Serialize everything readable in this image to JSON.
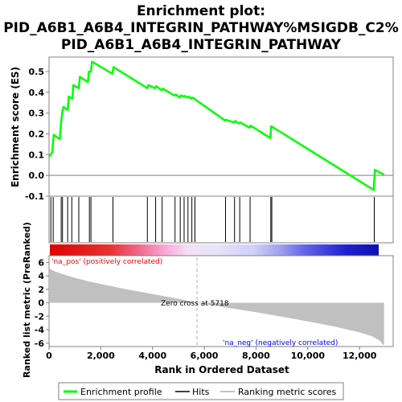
{
  "title_line1": "Enrichment plot:",
  "title_line2": "PID_A6B1_A6B4_INTEGRIN_PATHWAY%MSIGDB_C2%",
  "title_line3": "PID_A6B1_A6B4_INTEGRIN_PATHWAY",
  "colors": {
    "es_line": "#00ff00",
    "hits": "#000000",
    "metric_fill": "#c0c0c0",
    "pos_label": "#ff0000",
    "neg_label": "#0000ff",
    "frame": "#808080"
  },
  "chart_data": [
    {
      "type": "line",
      "name": "enrichment-score-panel",
      "ylabel": "Enrichment score (ES)",
      "ylim": [
        -0.1,
        0.57
      ],
      "yticks": [
        "-0.1",
        "0.0",
        "0.1",
        "0.2",
        "0.3",
        "0.4",
        "0.5"
      ],
      "ytick_values": [
        -0.1,
        0.0,
        0.1,
        0.2,
        0.3,
        0.4,
        0.5
      ],
      "xlim": [
        0,
        13300
      ],
      "grid": false,
      "x": [
        0,
        120,
        180,
        420,
        460,
        520,
        560,
        720,
        760,
        900,
        940,
        1150,
        1190,
        1500,
        1540,
        1620,
        1660,
        2450,
        2490,
        3800,
        3840,
        4100,
        4140,
        4350,
        4390,
        4850,
        4890,
        5050,
        5090,
        5200,
        5240,
        5350,
        5390,
        5500,
        5540,
        5620,
        5660,
        6800,
        6840,
        7150,
        7190,
        7350,
        7390,
        7750,
        7790,
        8550,
        8590,
        12550,
        12590,
        12950
      ],
      "y": [
        0.09,
        0.11,
        0.195,
        0.175,
        0.25,
        0.31,
        0.33,
        0.315,
        0.38,
        0.37,
        0.435,
        0.42,
        0.475,
        0.45,
        0.5,
        0.5,
        0.548,
        0.49,
        0.522,
        0.42,
        0.435,
        0.42,
        0.43,
        0.41,
        0.418,
        0.385,
        0.39,
        0.375,
        0.385,
        0.38,
        0.383,
        0.375,
        0.38,
        0.37,
        0.375,
        0.37,
        0.365,
        0.265,
        0.268,
        0.255,
        0.262,
        0.25,
        0.255,
        0.23,
        0.24,
        0.18,
        0.237,
        -0.07,
        0.027,
        0.003
      ]
    },
    {
      "type": "scatter",
      "name": "hits-panel",
      "xlim": [
        0,
        13300
      ],
      "x": [
        70,
        160,
        470,
        520,
        720,
        880,
        1150,
        1560,
        1620,
        2470,
        3800,
        4120,
        4370,
        4870,
        5070,
        5220,
        5370,
        5520,
        5640,
        6820,
        7170,
        7370,
        7770,
        8570,
        8610,
        12570
      ]
    },
    {
      "type": "area",
      "name": "ranked-list-metric-panel",
      "ylabel": "Ranked list metric (PreRanked)",
      "xlabel": "Rank in Ordered Dataset",
      "ylim": [
        -6.5,
        7
      ],
      "yticks": [
        "-6",
        "-4",
        "-2",
        "0",
        "2",
        "4",
        "6"
      ],
      "ytick_values": [
        -6,
        -4,
        -2,
        0,
        2,
        4,
        6
      ],
      "xlim": [
        0,
        13300
      ],
      "xticks": [
        "0",
        "2,000",
        "4,000",
        "6,000",
        "8,000",
        "10,000",
        "12,000"
      ],
      "xtick_values": [
        0,
        2000,
        4000,
        6000,
        8000,
        10000,
        12000
      ],
      "x": [
        0,
        50,
        200,
        500,
        1000,
        1500,
        2000,
        3000,
        4000,
        5000,
        5718,
        6500,
        8000,
        9500,
        11000,
        12000,
        12500,
        12800,
        12900,
        12950
      ],
      "y": [
        5.6,
        5.0,
        4.7,
        4.3,
        3.7,
        3.2,
        2.8,
        2.0,
        1.3,
        0.6,
        0.0,
        -0.5,
        -1.4,
        -2.4,
        -3.5,
        -4.4,
        -5.0,
        -5.7,
        -6.2,
        -6.3
      ],
      "zero_cross_label": "Zero cross at 5718",
      "zero_cross_x": 5718,
      "pos_label": "'na_pos' (positively correlated)",
      "neg_label": "'na_neg' (negatively correlated)"
    }
  ],
  "legend": {
    "items": [
      {
        "label": "Enrichment profile"
      },
      {
        "label": "Hits"
      },
      {
        "label": "Ranking metric scores"
      }
    ]
  }
}
